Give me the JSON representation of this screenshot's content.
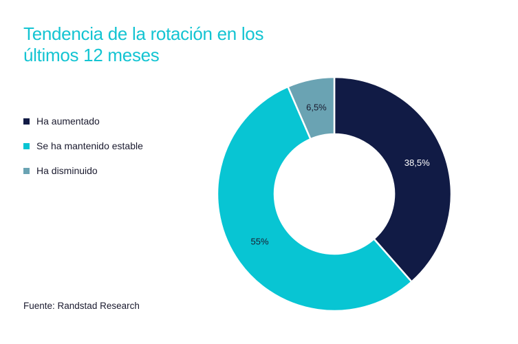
{
  "title": "Tendencia de la rotación en los últimos 12 meses",
  "source": "Fuente: Randstad Research",
  "colors": {
    "title": "#14c4d2",
    "aumentado": "#111b45",
    "estable": "#08c5d3",
    "disminuido": "#6aa3b3"
  },
  "legend": [
    {
      "label": "Ha aumentado",
      "color": "#111b45"
    },
    {
      "label": "Se ha mantenido estable",
      "color": "#08c5d3"
    },
    {
      "label": "Ha disminuido",
      "color": "#6aa3b3"
    }
  ],
  "chart_data": {
    "type": "pie",
    "style": "donut",
    "title": "Tendencia de la rotación en los últimos 12 meses",
    "categories": [
      "Ha aumentado",
      "Se ha mantenido estable",
      "Ha disminuido"
    ],
    "values": [
      38.5,
      55,
      6.5
    ],
    "value_labels": [
      "38,5%",
      "55%",
      "6,5%"
    ],
    "colors": [
      "#111b45",
      "#08c5d3",
      "#6aa3b3"
    ],
    "label_colors": [
      "#ffffff",
      "#1a1a2e",
      "#1a1a2e"
    ],
    "legend_position": "left"
  }
}
